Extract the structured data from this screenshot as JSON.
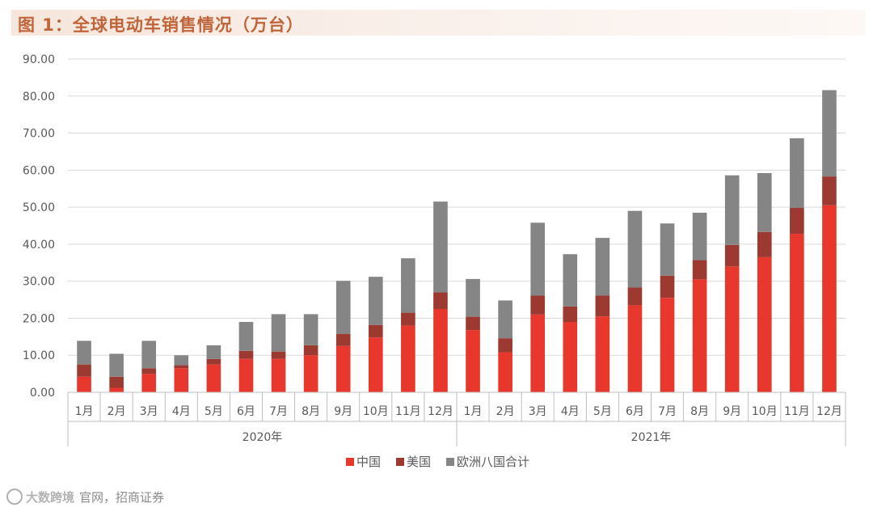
{
  "title": "图 1：全球电动车销售情况（万台）",
  "source": {
    "watermark": "大数跨境",
    "text": "官网，招商证券"
  },
  "colors": {
    "china": "#e8372c",
    "usa": "#9c3a32",
    "europe": "#858585",
    "title": "#c0643a",
    "grid": "#d9d9d9",
    "axis_text": "#595959"
  },
  "chart_data": {
    "type": "bar",
    "stacked": true,
    "title": "全球电动车销售情况（万台）",
    "xlabel": "",
    "ylabel": "",
    "ylim": [
      0,
      90
    ],
    "yticks": [
      "0.00",
      "10.00",
      "20.00",
      "30.00",
      "40.00",
      "50.00",
      "60.00",
      "70.00",
      "80.00",
      "90.00"
    ],
    "grid": true,
    "legend_position": "bottom",
    "groups": [
      {
        "label": "2020年",
        "categories": [
          "1月",
          "2月",
          "3月",
          "4月",
          "5月",
          "6月",
          "7月",
          "8月",
          "9月",
          "10月",
          "11月",
          "12月"
        ]
      },
      {
        "label": "2021年",
        "categories": [
          "1月",
          "2月",
          "3月",
          "4月",
          "5月",
          "6月",
          "7月",
          "8月",
          "9月",
          "10月",
          "11月",
          "12月"
        ]
      }
    ],
    "series": [
      {
        "name": "中国",
        "color": "#e8372c",
        "values": [
          4.2,
          1.2,
          5.0,
          6.5,
          7.5,
          9.0,
          9.0,
          10.0,
          12.5,
          14.8,
          18.0,
          22.5,
          16.8,
          10.8,
          21.0,
          19.0,
          20.5,
          23.5,
          25.5,
          30.5,
          34.0,
          36.5,
          42.8,
          50.5
        ]
      },
      {
        "name": "美国",
        "color": "#9c3a32",
        "values": [
          3.3,
          3.0,
          1.5,
          0.8,
          1.5,
          2.2,
          2.0,
          2.7,
          3.3,
          3.4,
          3.5,
          4.5,
          3.6,
          3.8,
          5.1,
          4.2,
          5.6,
          4.8,
          6.0,
          5.2,
          5.8,
          6.8,
          7.0,
          7.8
        ]
      },
      {
        "name": "欧洲八国合计",
        "color": "#858585",
        "values": [
          6.4,
          6.2,
          7.4,
          2.7,
          3.7,
          7.8,
          10.1,
          8.4,
          14.3,
          13.0,
          14.7,
          24.5,
          10.2,
          10.2,
          19.7,
          14.1,
          15.6,
          20.7,
          14.1,
          12.8,
          18.8,
          15.9,
          18.8,
          23.3
        ]
      }
    ]
  }
}
